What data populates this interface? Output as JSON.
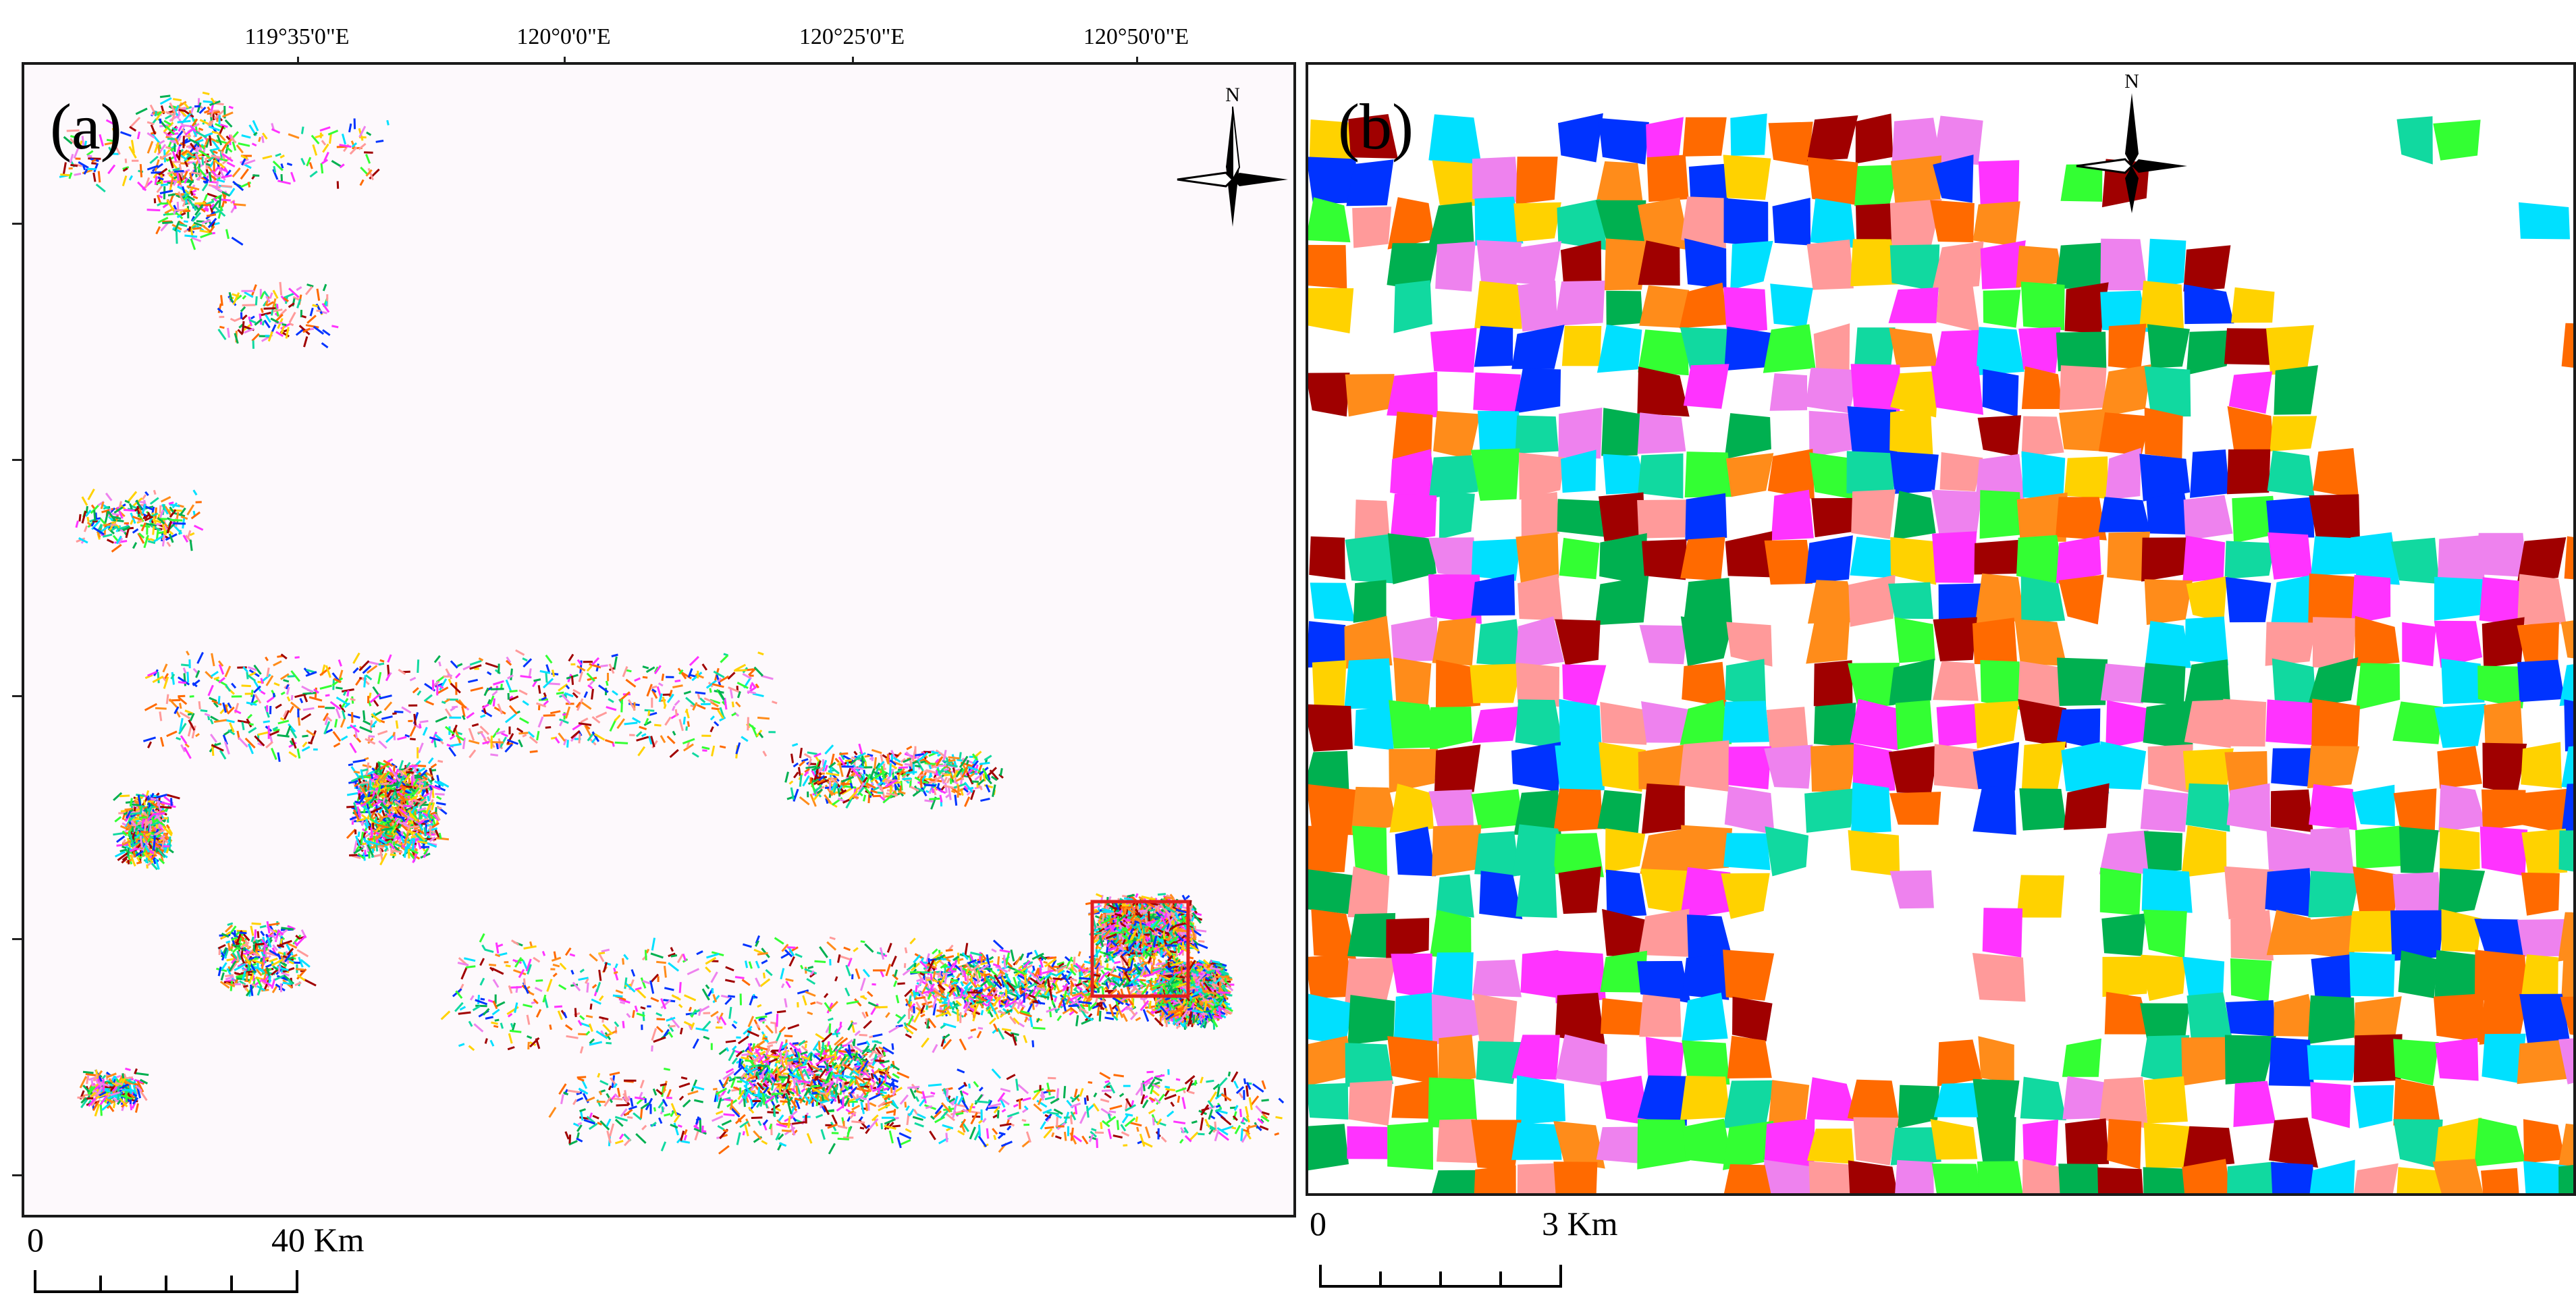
{
  "panel_a": {
    "label": "(a)",
    "longitude_labels": [
      "119°35'0\"E",
      "120°0'0\"E",
      "120°25'0\"E",
      "120°50'0\"E"
    ],
    "north_label": "N",
    "scale": {
      "start": "0",
      "end": "40 Km"
    },
    "highlight_box_color": "#e02020"
  },
  "panel_b": {
    "label": "(b)",
    "north_label": "N",
    "scale": {
      "start": "0",
      "end": "3 Km"
    }
  },
  "colors": [
    "#ff6a00",
    "#00e0ff",
    "#ff33ff",
    "#33ff33",
    "#ffd200",
    "#0033ff",
    "#a00000",
    "#ff9a9a",
    "#00b050",
    "#ff8c1a",
    "#ee82ee",
    "#11d9a0"
  ]
}
